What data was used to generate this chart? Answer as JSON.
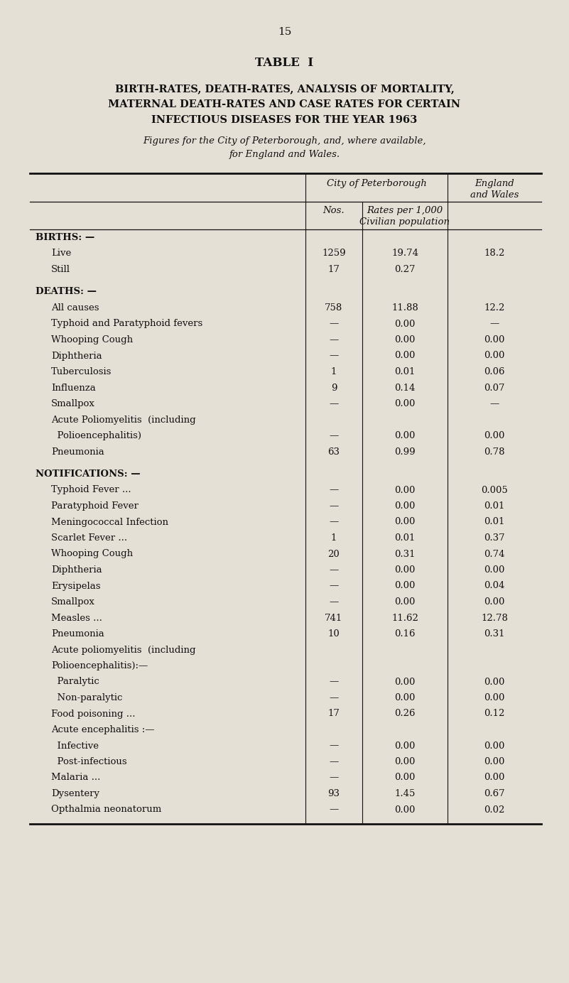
{
  "page_number": "15",
  "table_title": "TABLE  I",
  "subtitle_lines": [
    "BIRTH-RATES, DEATH-RATES, ANALYSIS OF MORTALITY,",
    "MATERNAL DEATH-RATES AND CASE RATES FOR CERTAIN",
    "INFECTIOUS DISEASES FOR THE YEAR 1963"
  ],
  "caption_lines": [
    "Figures for the City of Peterborough, and, where available,",
    "for England and Wales."
  ],
  "bg_color": "#e5e0d5",
  "text_color": "#111111",
  "line_color": "#111111",
  "rows": [
    {
      "label": "BIRTHS: —",
      "indent": 0,
      "bold": true,
      "nos": "",
      "rate": "",
      "ew": "",
      "gap_before": false
    },
    {
      "label": "Live",
      "indent": 1,
      "bold": false,
      "nos": "1259",
      "rate": "19.74",
      "ew": "18.2",
      "gap_before": false
    },
    {
      "label": "Still",
      "indent": 1,
      "bold": false,
      "nos": "17",
      "rate": "0.27",
      "ew": "",
      "gap_before": false
    },
    {
      "label": "DEATHS: —",
      "indent": 0,
      "bold": true,
      "nos": "",
      "rate": "",
      "ew": "",
      "gap_before": true
    },
    {
      "label": "All causes",
      "indent": 1,
      "bold": false,
      "nos": "758",
      "rate": "11.88",
      "ew": "12.2",
      "gap_before": false
    },
    {
      "label": "Typhoid and Paratyphoid fevers",
      "indent": 1,
      "bold": false,
      "nos": "—",
      "rate": "0.00",
      "ew": "—",
      "gap_before": false
    },
    {
      "label": "Whooping Cough",
      "indent": 1,
      "bold": false,
      "nos": "—",
      "rate": "0.00",
      "ew": "0.00",
      "gap_before": false
    },
    {
      "label": "Diphtheria",
      "indent": 1,
      "bold": false,
      "nos": "—",
      "rate": "0.00",
      "ew": "0.00",
      "gap_before": false
    },
    {
      "label": "Tuberculosis",
      "indent": 1,
      "bold": false,
      "nos": "1",
      "rate": "0.01",
      "ew": "0.06",
      "gap_before": false
    },
    {
      "label": "Influenza",
      "indent": 1,
      "bold": false,
      "nos": "9",
      "rate": "0.14",
      "ew": "0.07",
      "gap_before": false
    },
    {
      "label": "Smallpox",
      "indent": 1,
      "bold": false,
      "nos": "—",
      "rate": "0.00",
      "ew": "—",
      "gap_before": false
    },
    {
      "label": "Acute Poliomyelitis  (including",
      "indent": 1,
      "bold": false,
      "nos": "",
      "rate": "",
      "ew": "",
      "gap_before": false
    },
    {
      "label": "  Polioencephalitis)",
      "indent": 1,
      "bold": false,
      "nos": "—",
      "rate": "0.00",
      "ew": "0.00",
      "gap_before": false
    },
    {
      "label": "Pneumonia",
      "indent": 1,
      "bold": false,
      "nos": "63",
      "rate": "0.99",
      "ew": "0.78",
      "gap_before": false
    },
    {
      "label": "NOTIFICATIONS: —",
      "indent": 0,
      "bold": true,
      "nos": "",
      "rate": "",
      "ew": "",
      "gap_before": true
    },
    {
      "label": "Typhoid Fever ...",
      "indent": 1,
      "bold": false,
      "nos": "—",
      "rate": "0.00",
      "ew": "0.005",
      "gap_before": false
    },
    {
      "label": "Paratyphoid Fever",
      "indent": 1,
      "bold": false,
      "nos": "—",
      "rate": "0.00",
      "ew": "0.01",
      "gap_before": false
    },
    {
      "label": "Meningococcal Infection",
      "indent": 1,
      "bold": false,
      "nos": "—",
      "rate": "0.00",
      "ew": "0.01",
      "gap_before": false
    },
    {
      "label": "Scarlet Fever ...",
      "indent": 1,
      "bold": false,
      "nos": "1",
      "rate": "0.01",
      "ew": "0.37",
      "gap_before": false
    },
    {
      "label": "Whooping Cough",
      "indent": 1,
      "bold": false,
      "nos": "20",
      "rate": "0.31",
      "ew": "0.74",
      "gap_before": false
    },
    {
      "label": "Diphtheria",
      "indent": 1,
      "bold": false,
      "nos": "—",
      "rate": "0.00",
      "ew": "0.00",
      "gap_before": false
    },
    {
      "label": "Erysipelas",
      "indent": 1,
      "bold": false,
      "nos": "—",
      "rate": "0.00",
      "ew": "0.04",
      "gap_before": false
    },
    {
      "label": "Smallpox",
      "indent": 1,
      "bold": false,
      "nos": "—",
      "rate": "0.00",
      "ew": "0.00",
      "gap_before": false
    },
    {
      "label": "Measles ...",
      "indent": 1,
      "bold": false,
      "nos": "741",
      "rate": "11.62",
      "ew": "12.78",
      "gap_before": false
    },
    {
      "label": "Pneumonia",
      "indent": 1,
      "bold": false,
      "nos": "10",
      "rate": "0.16",
      "ew": "0.31",
      "gap_before": false
    },
    {
      "label": "Acute poliomyelitis  (including",
      "indent": 1,
      "bold": false,
      "nos": "",
      "rate": "",
      "ew": "",
      "gap_before": false
    },
    {
      "label": "Polioencephalitis):—",
      "indent": 1,
      "bold": false,
      "nos": "",
      "rate": "",
      "ew": "",
      "gap_before": false
    },
    {
      "label": "  Paralytic",
      "indent": 1,
      "bold": false,
      "nos": "—",
      "rate": "0.00",
      "ew": "0.00",
      "gap_before": false
    },
    {
      "label": "  Non-paralytic",
      "indent": 1,
      "bold": false,
      "nos": "—",
      "rate": "0.00",
      "ew": "0.00",
      "gap_before": false
    },
    {
      "label": "Food poisoning ...",
      "indent": 1,
      "bold": false,
      "nos": "17",
      "rate": "0.26",
      "ew": "0.12",
      "gap_before": false
    },
    {
      "label": "Acute encephalitis :—",
      "indent": 1,
      "bold": false,
      "nos": "",
      "rate": "",
      "ew": "",
      "gap_before": false
    },
    {
      "label": "  Infective",
      "indent": 1,
      "bold": false,
      "nos": "—",
      "rate": "0.00",
      "ew": "0.00",
      "gap_before": false
    },
    {
      "label": "  Post-infectious",
      "indent": 1,
      "bold": false,
      "nos": "—",
      "rate": "0.00",
      "ew": "0.00",
      "gap_before": false
    },
    {
      "label": "Malaria ...",
      "indent": 1,
      "bold": false,
      "nos": "—",
      "rate": "0.00",
      "ew": "0.00",
      "gap_before": false
    },
    {
      "label": "Dysentery",
      "indent": 1,
      "bold": false,
      "nos": "93",
      "rate": "1.45",
      "ew": "0.67",
      "gap_before": false
    },
    {
      "label": "Opthalmia neonatorum",
      "indent": 1,
      "bold": false,
      "nos": "—",
      "rate": "0.00",
      "ew": "0.02",
      "gap_before": false
    }
  ]
}
